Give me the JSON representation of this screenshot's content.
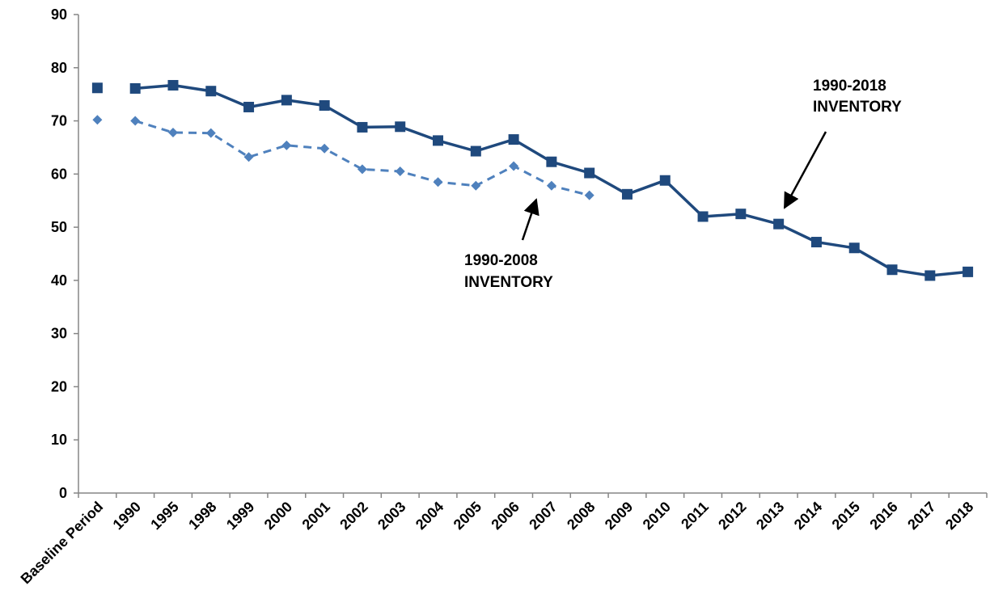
{
  "chart_data": {
    "type": "line",
    "title": "",
    "xlabel": "",
    "ylabel": "",
    "ylim": [
      0,
      90
    ],
    "y_ticks": [
      "0",
      "10",
      "20",
      "30",
      "40",
      "50",
      "60",
      "70",
      "80",
      "90"
    ],
    "grid": false,
    "categories": [
      "Baseline Period",
      "1990",
      "1995",
      "1998",
      "1999",
      "2000",
      "2001",
      "2002",
      "2003",
      "2004",
      "2005",
      "2006",
      "2007",
      "2008",
      "2009",
      "2010",
      "2011",
      "2012",
      "2013",
      "2014",
      "2015",
      "2016",
      "2017",
      "2018"
    ],
    "series": [
      {
        "key": "inv2018",
        "color": "#1f497d",
        "marker": "square",
        "line_style": "solid",
        "values": [
          76.2,
          76.1,
          76.7,
          75.6,
          72.6,
          73.9,
          72.9,
          68.8,
          68.9,
          66.3,
          64.3,
          66.5,
          62.3,
          60.2,
          56.2,
          58.8,
          52.0,
          52.5,
          50.6,
          47.2,
          46.1,
          42.0,
          40.9,
          41.6
        ],
        "connect_first": false
      },
      {
        "key": "inv2008",
        "color": "#4f81bd",
        "marker": "diamond",
        "line_style": "dashed",
        "values": [
          70.2,
          70.0,
          67.8,
          67.7,
          63.2,
          65.4,
          64.8,
          60.9,
          60.5,
          58.5,
          57.8,
          61.5,
          57.8,
          56.0,
          null,
          null,
          null,
          null,
          null,
          null,
          null,
          null,
          null,
          null
        ],
        "connect_first": false
      }
    ],
    "annotations": [
      {
        "lines": [
          "1990-2018",
          "INVENTORY"
        ],
        "points_to_series": "inv2018",
        "points_to_category": "2013"
      },
      {
        "lines": [
          "1990-2008",
          "INVENTORY"
        ],
        "points_to_series": "inv2008",
        "points_to_category": "2007"
      }
    ]
  }
}
